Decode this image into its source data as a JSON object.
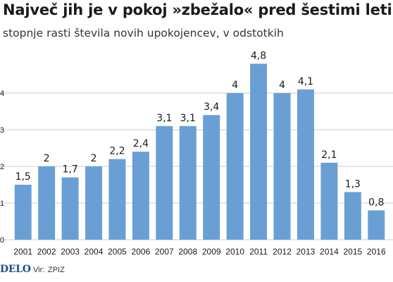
{
  "header": {
    "title": "Največ jih je v pokoj »zbežalo« pred šestimi leti",
    "subtitle": "stopnje rasti števila novih upokojencev, v odstotkih"
  },
  "footer": {
    "brand": "DELO",
    "source_label": "Vir:",
    "source_value": "ZPIZ"
  },
  "colors": {
    "bar": "#6a9fd6",
    "grid": "#bdbdbd",
    "text": "#1a1a1a"
  },
  "chart_data": {
    "type": "bar",
    "categories": [
      "2001",
      "2002",
      "2003",
      "2004",
      "2005",
      "2006",
      "2007",
      "2008",
      "2009",
      "2010",
      "2011",
      "2012",
      "2013",
      "2014",
      "2015",
      "2016"
    ],
    "values": [
      1.5,
      2,
      1.7,
      2,
      2.2,
      2.4,
      3.1,
      3.1,
      3.4,
      4,
      4.8,
      4,
      4.1,
      2.1,
      1.3,
      0.8
    ],
    "value_labels": [
      "1,5",
      "2",
      "1,7",
      "2",
      "2,2",
      "2,4",
      "3,1",
      "3,1",
      "3,4",
      "4",
      "4,8",
      "4",
      "4,1",
      "2,1",
      "1,3",
      "0,8"
    ],
    "y_ticks": [
      0,
      1,
      2,
      3,
      4
    ],
    "y_tick_labels": [
      "0",
      "1",
      "2",
      "3",
      "4"
    ],
    "ylim": [
      0,
      5
    ],
    "grid": true,
    "title": "Največ jih je v pokoj »zbežalo« pred šestimi leti",
    "subtitle": "stopnje rasti števila novih upokojencev, v odstotkih",
    "xlabel": "",
    "ylabel": ""
  }
}
